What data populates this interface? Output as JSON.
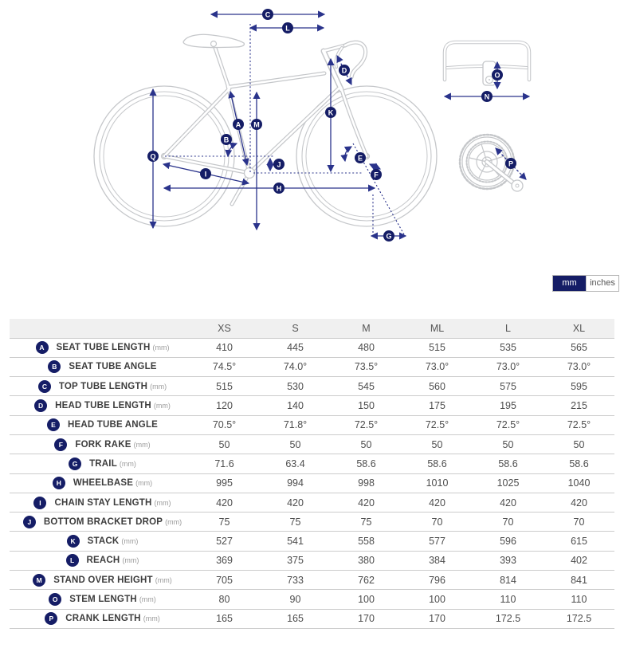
{
  "colors": {
    "navy_badge": "#151d66",
    "navy_line": "#2a338b",
    "bike_gray": "#c5c7ca",
    "table_border": "#cccccc",
    "header_bg": "#f0f0f0"
  },
  "units_toggle": {
    "options": [
      {
        "label": "mm",
        "selected": true
      },
      {
        "label": "inches",
        "selected": false
      }
    ]
  },
  "diagram": {
    "badge_letters": {
      "A": "A",
      "B": "B",
      "C": "C",
      "D": "D",
      "E": "E",
      "F": "F",
      "G": "G",
      "H": "H",
      "I": "I",
      "J": "J",
      "K": "K",
      "L": "L",
      "M": "M",
      "N": "N",
      "O": "O",
      "P": "P",
      "Q": "Q"
    }
  },
  "table": {
    "columns": [
      "XS",
      "S",
      "M",
      "ML",
      "L",
      "XL"
    ],
    "rows": [
      {
        "letter": "A",
        "label": "SEAT TUBE LENGTH",
        "unit": "(mm)",
        "values": [
          "410",
          "445",
          "480",
          "515",
          "535",
          "565"
        ]
      },
      {
        "letter": "B",
        "label": "SEAT TUBE ANGLE",
        "unit": "",
        "values": [
          "74.5°",
          "74.0°",
          "73.5°",
          "73.0°",
          "73.0°",
          "73.0°"
        ]
      },
      {
        "letter": "C",
        "label": "TOP TUBE LENGTH",
        "unit": "(mm)",
        "values": [
          "515",
          "530",
          "545",
          "560",
          "575",
          "595"
        ]
      },
      {
        "letter": "D",
        "label": "HEAD TUBE LENGTH",
        "unit": "(mm)",
        "values": [
          "120",
          "140",
          "150",
          "175",
          "195",
          "215"
        ]
      },
      {
        "letter": "E",
        "label": "HEAD TUBE ANGLE",
        "unit": "",
        "values": [
          "70.5°",
          "71.8°",
          "72.5°",
          "72.5°",
          "72.5°",
          "72.5°"
        ]
      },
      {
        "letter": "F",
        "label": "FORK RAKE",
        "unit": "(mm)",
        "values": [
          "50",
          "50",
          "50",
          "50",
          "50",
          "50"
        ]
      },
      {
        "letter": "G",
        "label": "TRAIL",
        "unit": "(mm)",
        "values": [
          "71.6",
          "63.4",
          "58.6",
          "58.6",
          "58.6",
          "58.6"
        ]
      },
      {
        "letter": "H",
        "label": "WHEELBASE",
        "unit": "(mm)",
        "values": [
          "995",
          "994",
          "998",
          "1010",
          "1025",
          "1040"
        ]
      },
      {
        "letter": "I",
        "label": "CHAIN STAY LENGTH",
        "unit": "(mm)",
        "values": [
          "420",
          "420",
          "420",
          "420",
          "420",
          "420"
        ]
      },
      {
        "letter": "J",
        "label": "BOTTOM BRACKET DROP",
        "unit": "(mm)",
        "values": [
          "75",
          "75",
          "75",
          "70",
          "70",
          "70"
        ]
      },
      {
        "letter": "K",
        "label": "STACK",
        "unit": "(mm)",
        "values": [
          "527",
          "541",
          "558",
          "577",
          "596",
          "615"
        ]
      },
      {
        "letter": "L",
        "label": "REACH",
        "unit": "(mm)",
        "values": [
          "369",
          "375",
          "380",
          "384",
          "393",
          "402"
        ]
      },
      {
        "letter": "M",
        "label": "STAND OVER HEIGHT",
        "unit": "(mm)",
        "values": [
          "705",
          "733",
          "762",
          "796",
          "814",
          "841"
        ]
      },
      {
        "letter": "O",
        "label": "STEM LENGTH",
        "unit": "(mm)",
        "values": [
          "80",
          "90",
          "100",
          "100",
          "110",
          "110"
        ]
      },
      {
        "letter": "P",
        "label": "CRANK LENGTH",
        "unit": "(mm)",
        "values": [
          "165",
          "165",
          "170",
          "170",
          "172.5",
          "172.5"
        ]
      }
    ]
  }
}
